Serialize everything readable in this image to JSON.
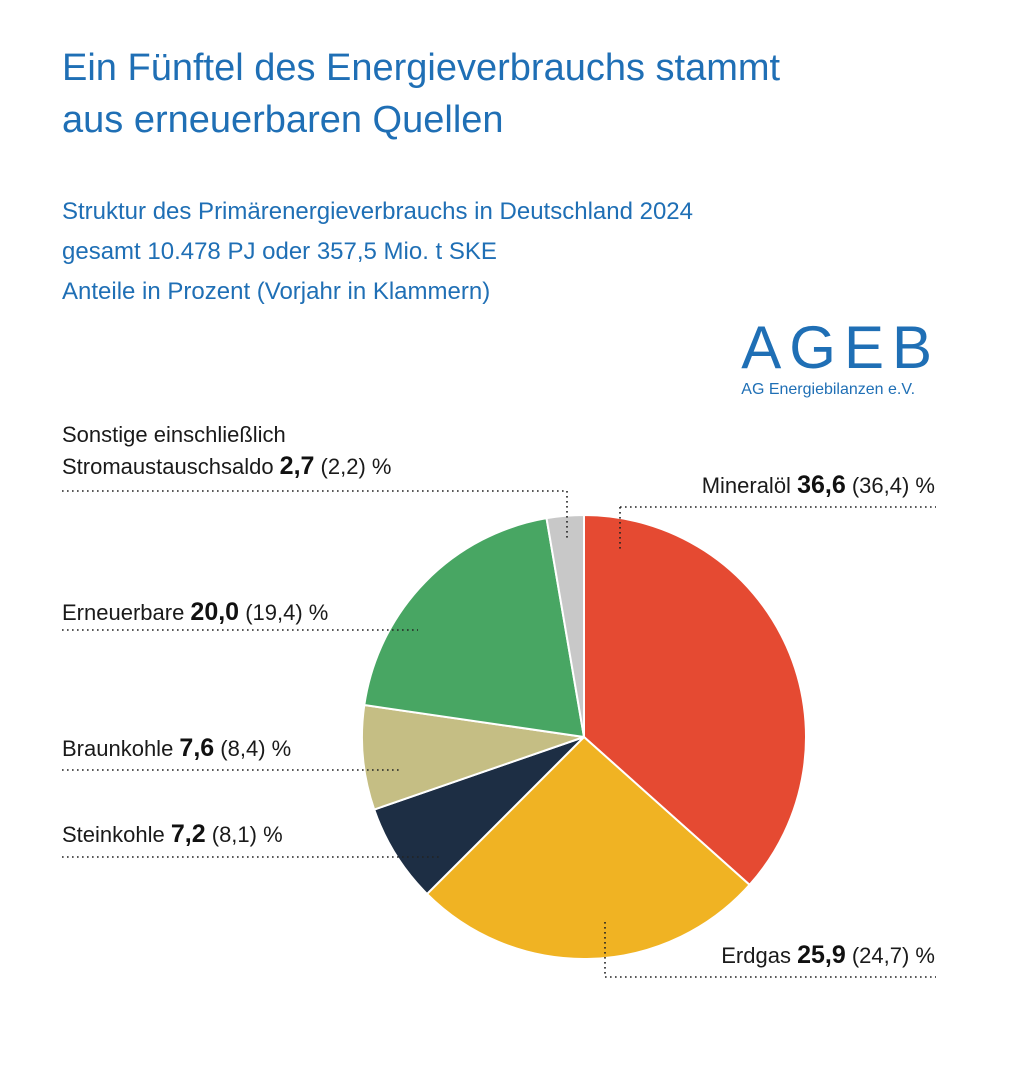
{
  "title_lines": [
    "Ein Fünftel des Energieverbrauchs stammt",
    "aus erneuerbaren Quellen"
  ],
  "subtitle_lines": [
    "Struktur des Primärenergieverbrauchs in Deutschland 2024",
    "gesamt 10.478 PJ oder 357,5 Mio. t SKE",
    "Anteile in Prozent (Vorjahr in Klammern)"
  ],
  "logo": {
    "main": "AGEB",
    "sub": "AG Energiebilanzen e.V."
  },
  "chart_data": {
    "type": "pie",
    "unit": "%",
    "slices": [
      {
        "name": "Mineralöl",
        "value": 36.6,
        "value_label": "36,6",
        "prior_label": "(36,4)",
        "color": "#e54a32"
      },
      {
        "name": "Erdgas",
        "value": 25.9,
        "value_label": "25,9",
        "prior_label": "(24,7)",
        "color": "#f0b323"
      },
      {
        "name": "Steinkohle",
        "value": 7.2,
        "value_label": "7,2",
        "prior_label": "(8,1)",
        "color": "#1d2e44"
      },
      {
        "name": "Braunkohle",
        "value": 7.6,
        "value_label": "7,6",
        "prior_label": "(8,4)",
        "color": "#c5be84"
      },
      {
        "name": "Erneuerbare",
        "value": 20.0,
        "value_label": "20,0",
        "prior_label": "(19,4)",
        "color": "#48a663"
      },
      {
        "name": "Sonstige einschließlich Stromaustauschsaldo",
        "value": 2.7,
        "value_label": "2,7",
        "prior_label": "(2,2)",
        "color": "#c8c8c8"
      }
    ]
  }
}
